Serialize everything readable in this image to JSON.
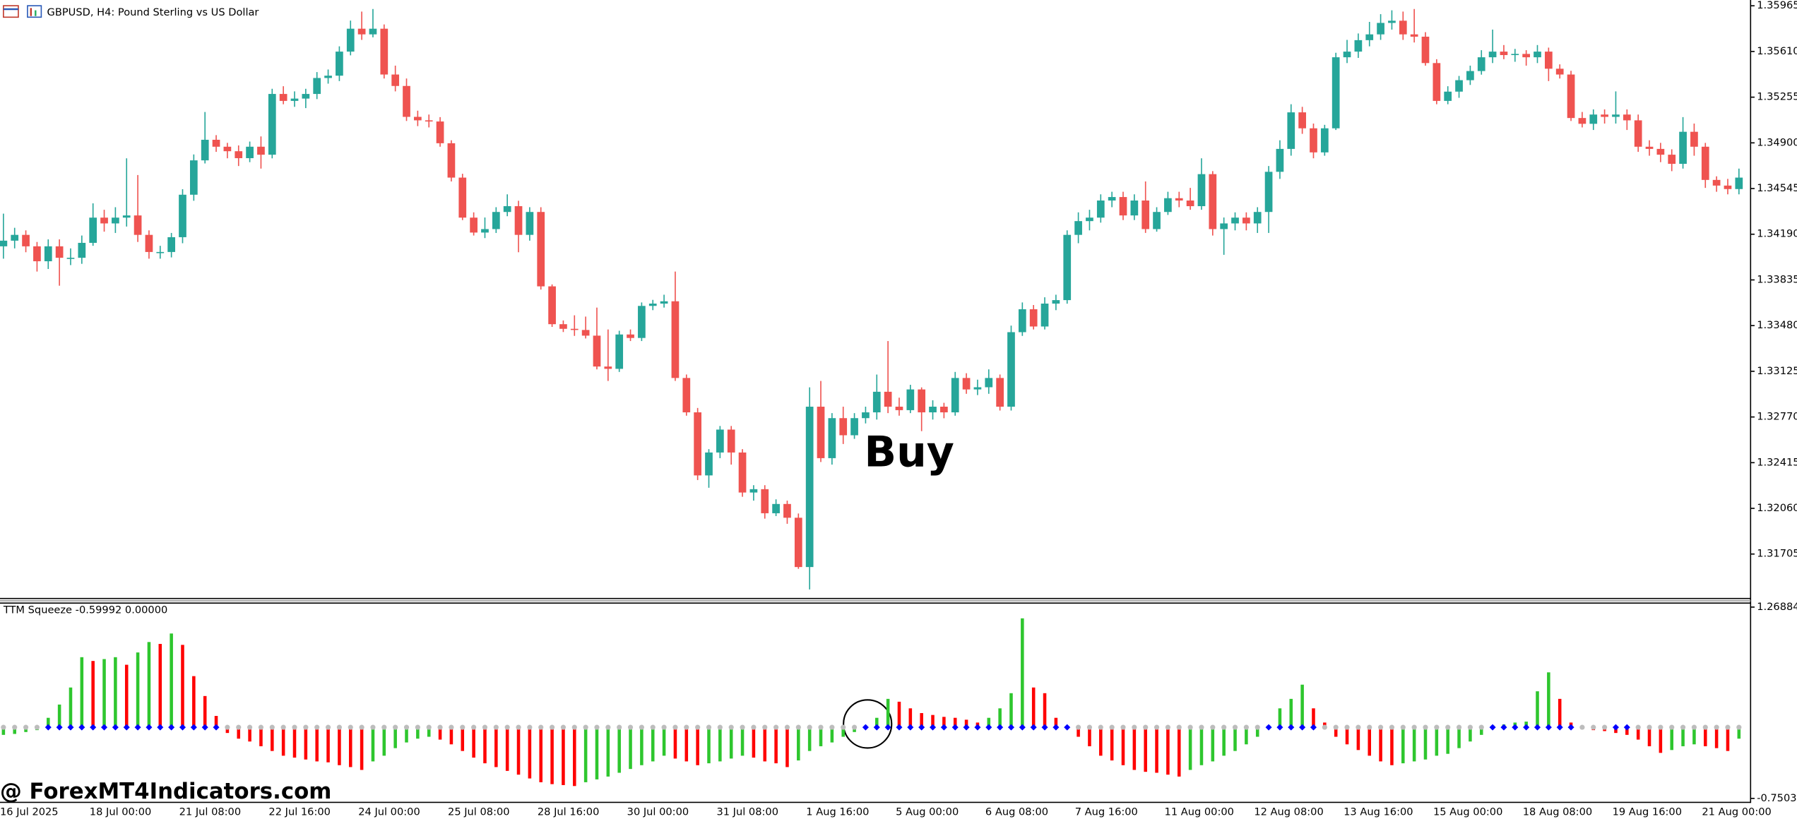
{
  "header": {
    "title": "GBPUSD, H4:  Pound Sterling vs US Dollar"
  },
  "watermark": "@ ForexMT4Indicators.com",
  "chart_data": [
    {
      "type": "candlestick",
      "annotation": "Buy",
      "up_color": "#26a69a",
      "down_color": "#ef5350",
      "ylim": [
        1.31364,
        1.3601
      ],
      "yticks": [
        1.35965,
        {
          "value": 1.3561,
          "label": "1.35610"
        },
        1.35255,
        {
          "value": 1.349,
          "label": "1.34900"
        },
        1.34545,
        {
          "value": 1.3419,
          "label": "1.34190"
        },
        1.33835,
        {
          "value": 1.3348,
          "label": "1.33480"
        },
        1.33125,
        {
          "value": 1.3277,
          "label": "1.32770"
        },
        1.32415,
        {
          "value": 1.3206,
          "label": "1.32060"
        },
        1.31705
      ],
      "categories": [
        "16 Jul 2025",
        null,
        null,
        null,
        null,
        null,
        null,
        null,
        "18 Jul 00:00",
        null,
        null,
        null,
        null,
        null,
        null,
        null,
        "21 Jul 08:00",
        null,
        null,
        null,
        null,
        null,
        null,
        null,
        "22 Jul 16:00",
        null,
        null,
        null,
        null,
        null,
        null,
        null,
        "24 Jul 00:00",
        null,
        null,
        null,
        null,
        null,
        null,
        null,
        "25 Jul 08:00",
        null,
        null,
        null,
        null,
        null,
        null,
        null,
        "28 Jul 16:00",
        null,
        null,
        null,
        null,
        null,
        null,
        null,
        "30 Jul 00:00",
        null,
        null,
        null,
        null,
        null,
        null,
        null,
        "31 Jul 08:00",
        null,
        null,
        null,
        null,
        null,
        null,
        null,
        "1 Aug 16:00",
        null,
        null,
        null,
        null,
        null,
        null,
        null,
        "5 Aug 00:00",
        null,
        null,
        null,
        null,
        null,
        null,
        null,
        "6 Aug 08:00",
        null,
        null,
        null,
        null,
        null,
        null,
        null,
        "7 Aug 16:00",
        null,
        null,
        null,
        null,
        null,
        null,
        null,
        "11 Aug 00:00",
        null,
        null,
        null,
        null,
        null,
        null,
        null,
        "12 Aug 08:00",
        null,
        null,
        null,
        null,
        null,
        null,
        null,
        "13 Aug 16:00",
        null,
        null,
        null,
        null,
        null,
        null,
        null,
        "15 Aug 00:00",
        null,
        null,
        null,
        null,
        null,
        null,
        null,
        "18 Aug 08:00",
        null,
        null,
        null,
        null,
        null,
        null,
        null,
        "19 Aug 16:00",
        null,
        null,
        null,
        null,
        null,
        null,
        null,
        "21 Aug 00:00",
        null,
        null,
        null
      ],
      "open": [
        1.34096,
        1.3414,
        1.34185,
        1.34096,
        1.3398,
        1.34096,
        1.34007,
        1.34007,
        1.34123,
        1.34319,
        1.34274,
        1.34319,
        1.34336,
        1.34185,
        1.34052,
        1.34052,
        1.34167,
        1.34497,
        1.34764,
        1.34924,
        1.3487,
        1.34835,
        1.34781,
        1.3487,
        1.34808,
        1.3528,
        1.35226,
        1.35244,
        1.3528,
        1.35404,
        1.35422,
        1.35609,
        1.35787,
        1.35743,
        1.35787,
        1.35431,
        1.35342,
        1.35102,
        1.35075,
        1.35066,
        1.34897,
        1.3463,
        1.34319,
        1.34203,
        1.3423,
        1.34363,
        1.34408,
        1.34185,
        1.34363,
        1.33785,
        1.33491,
        1.33455,
        1.33446,
        1.33402,
        1.33162,
        1.33144,
        1.33411,
        1.33384,
        1.33633,
        1.33651,
        1.33669,
        1.33073,
        1.32806,
        1.32316,
        1.32494,
        1.32672,
        1.32494,
        1.32183,
        1.32209,
        1.32022,
        1.32094,
        1.31987,
        1.31604,
        1.3285,
        1.3245,
        1.32761,
        1.32628,
        1.32761,
        1.32806,
        1.32966,
        1.3285,
        1.32823,
        1.32984,
        1.32806,
        1.3285,
        1.32806,
        1.33073,
        1.32984,
        1.33001,
        1.33073,
        1.3285,
        1.33429,
        1.33607,
        1.33473,
        1.33651,
        1.33678,
        1.34185,
        1.34292,
        1.34319,
        1.34452,
        1.34479,
        1.34336,
        1.34452,
        1.3423,
        1.34363,
        1.3447,
        1.34452,
        1.34408,
        1.34657,
        1.3423,
        1.34274,
        1.34319,
        1.34274,
        1.34363,
        1.34675,
        1.34853,
        1.35137,
        1.35013,
        1.34826,
        1.35013,
        1.35565,
        1.35609,
        1.35698,
        1.35743,
        1.35832,
        1.35849,
        1.35743,
        1.35725,
        1.3552,
        1.35226,
        1.35298,
        1.35387,
        1.35458,
        1.35565,
        1.35609,
        1.35582,
        1.35591,
        1.35565,
        1.35609,
        1.35476,
        1.35431,
        1.35093,
        1.35048,
        1.3512,
        1.35102,
        1.3512,
        1.35075,
        1.3487,
        1.34853,
        1.34808,
        1.34737,
        1.34986,
        1.3487,
        1.34612,
        1.34568,
        1.34541
      ],
      "high": [
        1.3435,
        1.3424,
        1.3422,
        1.3413,
        1.3415,
        1.3415,
        1.3408,
        1.3418,
        1.3443,
        1.3438,
        1.344,
        1.3478,
        1.3465,
        1.3422,
        1.341,
        1.342,
        1.3454,
        1.3481,
        1.3514,
        1.3496,
        1.349,
        1.3488,
        1.3491,
        1.3495,
        1.3532,
        1.3534,
        1.353,
        1.3532,
        1.3545,
        1.3547,
        1.3565,
        1.3585,
        1.3592,
        1.3594,
        1.3582,
        1.355,
        1.354,
        1.3515,
        1.3512,
        1.351,
        1.3492,
        1.3466,
        1.3436,
        1.3432,
        1.344,
        1.345,
        1.3445,
        1.344,
        1.344,
        1.338,
        1.3352,
        1.3356,
        1.3355,
        1.3362,
        1.3345,
        1.3344,
        1.3345,
        1.3366,
        1.3368,
        1.3372,
        1.339,
        1.331,
        1.3284,
        1.3252,
        1.327,
        1.327,
        1.3252,
        1.3224,
        1.3224,
        1.3213,
        1.3212,
        1.3202,
        1.33,
        1.3305,
        1.328,
        1.3285,
        1.328,
        1.3285,
        1.331,
        1.3336,
        1.3292,
        1.3302,
        1.33,
        1.329,
        1.3288,
        1.3312,
        1.3311,
        1.3306,
        1.3314,
        1.331,
        1.3348,
        1.3366,
        1.3364,
        1.337,
        1.3372,
        1.3422,
        1.3436,
        1.3438,
        1.345,
        1.3452,
        1.3452,
        1.345,
        1.346,
        1.344,
        1.3452,
        1.3452,
        1.3455,
        1.3478,
        1.3468,
        1.3432,
        1.3436,
        1.3436,
        1.344,
        1.3472,
        1.3492,
        1.352,
        1.3518,
        1.3505,
        1.3504,
        1.356,
        1.357,
        1.3575,
        1.3584,
        1.359,
        1.3593,
        1.3592,
        1.3594,
        1.3576,
        1.3555,
        1.3534,
        1.3542,
        1.355,
        1.3562,
        1.3578,
        1.3566,
        1.3563,
        1.3562,
        1.3566,
        1.3564,
        1.3551,
        1.3546,
        1.3514,
        1.3516,
        1.3516,
        1.353,
        1.3516,
        1.3512,
        1.3492,
        1.349,
        1.3485,
        1.351,
        1.3505,
        1.349,
        1.3464,
        1.3462,
        1.347
      ],
      "low": [
        1.34,
        1.3408,
        1.3405,
        1.339,
        1.3392,
        1.3379,
        1.3395,
        1.3396,
        1.341,
        1.3421,
        1.342,
        1.3425,
        1.3413,
        1.34,
        1.34,
        1.3401,
        1.3412,
        1.3445,
        1.3474,
        1.3483,
        1.3478,
        1.3472,
        1.3475,
        1.347,
        1.3478,
        1.352,
        1.3518,
        1.3517,
        1.3524,
        1.3536,
        1.3538,
        1.3558,
        1.357,
        1.3572,
        1.354,
        1.353,
        1.3507,
        1.3503,
        1.3502,
        1.3487,
        1.346,
        1.343,
        1.3418,
        1.3416,
        1.342,
        1.3433,
        1.3405,
        1.3414,
        1.3376,
        1.3347,
        1.3343,
        1.334,
        1.3338,
        1.3314,
        1.3305,
        1.3312,
        1.3336,
        1.3336,
        1.336,
        1.3362,
        1.3305,
        1.3278,
        1.3228,
        1.3222,
        1.3245,
        1.324,
        1.3215,
        1.3212,
        1.3198,
        1.32,
        1.3194,
        1.3159,
        1.3143,
        1.3242,
        1.324,
        1.3256,
        1.326,
        1.3272,
        1.3275,
        1.328,
        1.3278,
        1.328,
        1.3266,
        1.3275,
        1.3276,
        1.3278,
        1.3295,
        1.3294,
        1.3295,
        1.3282,
        1.3282,
        1.334,
        1.3345,
        1.3345,
        1.336,
        1.3365,
        1.3412,
        1.3422,
        1.3428,
        1.344,
        1.343,
        1.343,
        1.342,
        1.3421,
        1.3434,
        1.344,
        1.3438,
        1.3438,
        1.3418,
        1.3403,
        1.3422,
        1.3422,
        1.342,
        1.342,
        1.3462,
        1.348,
        1.3497,
        1.3478,
        1.348,
        1.35,
        1.3552,
        1.3556,
        1.3565,
        1.357,
        1.3578,
        1.357,
        1.3568,
        1.355,
        1.352,
        1.352,
        1.3525,
        1.3535,
        1.3543,
        1.3552,
        1.3555,
        1.3553,
        1.355,
        1.3552,
        1.3538,
        1.354,
        1.3507,
        1.3502,
        1.35,
        1.3505,
        1.3505,
        1.35,
        1.3483,
        1.348,
        1.3475,
        1.3468,
        1.347,
        1.348,
        1.3455,
        1.3452,
        1.345,
        1.345
      ],
      "close": [
        1.3414,
        1.34185,
        1.34096,
        1.3398,
        1.34096,
        1.34007,
        1.34007,
        1.34123,
        1.34319,
        1.34274,
        1.34319,
        1.34336,
        1.34185,
        1.34052,
        1.34052,
        1.34167,
        1.34497,
        1.34764,
        1.34924,
        1.3487,
        1.34835,
        1.34781,
        1.3487,
        1.34808,
        1.3528,
        1.35226,
        1.35244,
        1.3528,
        1.35404,
        1.35422,
        1.35609,
        1.35787,
        1.35743,
        1.35787,
        1.35431,
        1.35342,
        1.35102,
        1.35075,
        1.35066,
        1.34897,
        1.3463,
        1.34319,
        1.34203,
        1.3423,
        1.34363,
        1.34408,
        1.34185,
        1.34363,
        1.33785,
        1.33491,
        1.33455,
        1.33446,
        1.33402,
        1.33162,
        1.33144,
        1.33411,
        1.33384,
        1.33633,
        1.33651,
        1.33669,
        1.33073,
        1.32806,
        1.32316,
        1.32494,
        1.32672,
        1.32494,
        1.32183,
        1.32209,
        1.32022,
        1.32094,
        1.31987,
        1.31604,
        1.3285,
        1.3245,
        1.32761,
        1.32628,
        1.32761,
        1.32806,
        1.32966,
        1.3285,
        1.32823,
        1.32984,
        1.32806,
        1.3285,
        1.32806,
        1.33073,
        1.32984,
        1.33001,
        1.33073,
        1.3285,
        1.33429,
        1.33607,
        1.33473,
        1.33651,
        1.33678,
        1.34185,
        1.34292,
        1.34319,
        1.34452,
        1.34479,
        1.34336,
        1.34452,
        1.3423,
        1.34363,
        1.3447,
        1.34452,
        1.34408,
        1.34657,
        1.3423,
        1.34274,
        1.34319,
        1.34274,
        1.34363,
        1.34675,
        1.34853,
        1.35137,
        1.35013,
        1.34826,
        1.35013,
        1.35565,
        1.35609,
        1.35698,
        1.35743,
        1.35832,
        1.35849,
        1.35743,
        1.35725,
        1.3552,
        1.35226,
        1.35298,
        1.35387,
        1.35458,
        1.35565,
        1.35609,
        1.35582,
        1.35591,
        1.35565,
        1.35609,
        1.35476,
        1.35431,
        1.35093,
        1.35048,
        1.3512,
        1.35102,
        1.3512,
        1.35075,
        1.3487,
        1.34853,
        1.34808,
        1.34737,
        1.34986,
        1.3487,
        1.34612,
        1.34568,
        1.34541,
        1.3463
      ]
    },
    {
      "type": "squeeze-histogram",
      "title": "TTM Squeeze -0.59992 0.00000",
      "up_color": "#2ec62e",
      "down_color": "#ff0000",
      "squeeze_on_color": "#0000ff",
      "squeeze_off_color": "#bdbdbd",
      "ylim": [
        -0.75039,
        1.26884
      ],
      "yticks": [
        1.26884,
        -0.75039
      ],
      "values": [
        -0.08,
        -0.07,
        -0.05,
        -0.03,
        0.1,
        0.24,
        0.42,
        0.74,
        0.7,
        0.72,
        0.74,
        0.66,
        0.79,
        0.9,
        0.88,
        0.99,
        0.87,
        0.54,
        0.33,
        0.12,
        -0.06,
        -0.12,
        -0.15,
        -0.2,
        -0.25,
        -0.3,
        -0.32,
        -0.34,
        -0.36,
        -0.37,
        -0.4,
        -0.42,
        -0.45,
        -0.36,
        -0.3,
        -0.22,
        -0.16,
        -0.12,
        -0.1,
        -0.13,
        -0.18,
        -0.25,
        -0.32,
        -0.38,
        -0.42,
        -0.46,
        -0.5,
        -0.54,
        -0.58,
        -0.6,
        -0.61,
        -0.62,
        -0.58,
        -0.55,
        -0.52,
        -0.48,
        -0.44,
        -0.4,
        -0.36,
        -0.3,
        -0.33,
        -0.36,
        -0.4,
        -0.38,
        -0.36,
        -0.33,
        -0.3,
        -0.32,
        -0.36,
        -0.38,
        -0.42,
        -0.35,
        -0.25,
        -0.2,
        -0.16,
        -0.1,
        -0.05,
        0.02,
        0.1,
        0.3,
        0.27,
        0.2,
        0.15,
        0.13,
        0.11,
        0.1,
        0.08,
        0.05,
        0.1,
        0.2,
        0.36,
        1.15,
        0.42,
        0.36,
        0.1,
        -0.02,
        -0.1,
        -0.2,
        -0.3,
        -0.35,
        -0.4,
        -0.45,
        -0.47,
        -0.48,
        -0.5,
        -0.52,
        -0.45,
        -0.4,
        -0.36,
        -0.3,
        -0.25,
        -0.18,
        -0.1,
        0.02,
        0.2,
        0.3,
        0.45,
        0.2,
        0.05,
        -0.1,
        -0.18,
        -0.24,
        -0.3,
        -0.36,
        -0.4,
        -0.38,
        -0.36,
        -0.34,
        -0.3,
        -0.28,
        -0.22,
        -0.15,
        -0.08,
        0.02,
        0.03,
        0.05,
        0.06,
        0.38,
        0.58,
        0.3,
        0.05,
        -0.02,
        -0.03,
        -0.04,
        -0.06,
        -0.08,
        -0.13,
        -0.2,
        -0.27,
        -0.24,
        -0.2,
        -0.18,
        -0.2,
        -0.22,
        -0.25,
        -0.12
      ],
      "squeeze": [
        0,
        0,
        0,
        0,
        1,
        1,
        1,
        1,
        1,
        1,
        1,
        1,
        1,
        1,
        1,
        1,
        1,
        1,
        1,
        1,
        0,
        0,
        0,
        0,
        0,
        0,
        0,
        0,
        0,
        0,
        0,
        0,
        0,
        0,
        0,
        0,
        0,
        0,
        0,
        0,
        0,
        0,
        0,
        0,
        0,
        0,
        0,
        0,
        0,
        0,
        0,
        0,
        0,
        0,
        0,
        0,
        0,
        0,
        0,
        0,
        0,
        0,
        0,
        0,
        0,
        0,
        0,
        0,
        0,
        0,
        0,
        0,
        0,
        0,
        0,
        0,
        0,
        1,
        1,
        1,
        1,
        1,
        1,
        1,
        1,
        1,
        1,
        1,
        1,
        1,
        1,
        1,
        1,
        1,
        1,
        1,
        0,
        0,
        0,
        0,
        0,
        0,
        0,
        0,
        0,
        0,
        0,
        0,
        0,
        0,
        0,
        0,
        0,
        1,
        1,
        1,
        1,
        1,
        0,
        0,
        0,
        0,
        0,
        0,
        0,
        0,
        0,
        0,
        0,
        0,
        0,
        0,
        0,
        1,
        1,
        1,
        1,
        1,
        1,
        1,
        1,
        0,
        0,
        0,
        1,
        1,
        0,
        0,
        0,
        0,
        0,
        0,
        0,
        0,
        0,
        0
      ]
    }
  ]
}
